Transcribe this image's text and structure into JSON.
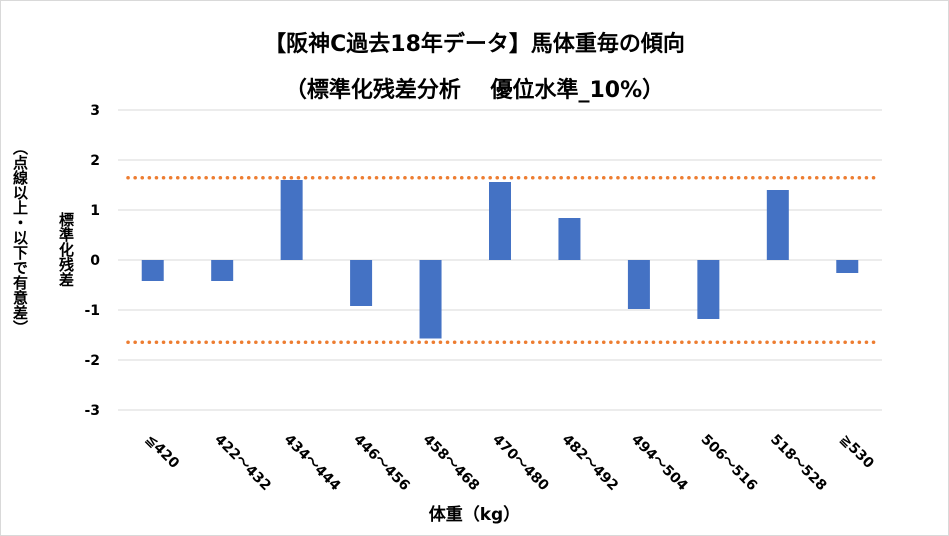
{
  "chart_data": {
    "type": "bar",
    "title": "【阪神C過去18年データ】馬体重毎の傾向",
    "subtitle": "（標準化残差分析　 優位水準_10%）",
    "xlabel": "体重（kg）",
    "ylabel": "標準化残差",
    "ylabel_note": "（点線以上・以下で有意差）",
    "categories": [
      "≦420",
      "422～432",
      "434～444",
      "446～456",
      "458～468",
      "470～480",
      "482～492",
      "494～504",
      "506～516",
      "518～528",
      "≧530"
    ],
    "values": [
      -0.42,
      -0.42,
      1.6,
      -0.92,
      -1.57,
      1.56,
      0.84,
      -0.98,
      -1.18,
      1.4,
      -0.26
    ],
    "ylim": [
      -3,
      3
    ],
    "yticks": [
      3,
      2,
      1,
      0,
      -1,
      -2,
      -3
    ],
    "threshold_lines": [
      1.645,
      -1.645
    ],
    "grid": true,
    "colors": {
      "bar": "#4472c4",
      "threshold": "#ed7d31",
      "grid": "#d9d9d9"
    }
  }
}
